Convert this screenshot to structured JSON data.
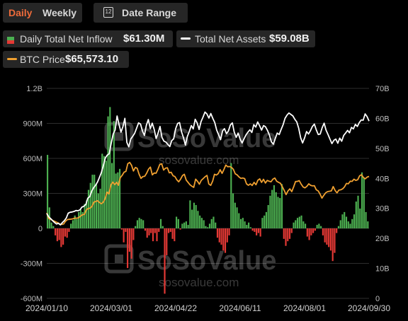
{
  "controls": {
    "tabs": [
      {
        "label": "Daily",
        "active": true
      },
      {
        "label": "Weekly",
        "active": false
      }
    ],
    "date_range_label": "Date Range",
    "calendar_icon_text": "12"
  },
  "colors": {
    "inflow_positive": "#4caf50",
    "inflow_negative": "#e53935",
    "total_net_assets": "#ffffff",
    "btc_price": "#f0a030",
    "active_tab": "#ee6b3a"
  },
  "watermark": {
    "brand": "SoSoValue",
    "url": "sosovalue.com"
  },
  "chart_data": {
    "type": "bar",
    "legend": [
      {
        "name": "Daily Total Net Inflow",
        "value": "$61.30M"
      },
      {
        "name": "Total Net Assets",
        "value": "$59.08B"
      },
      {
        "name": "BTC Price",
        "value": "$65,573.10"
      }
    ],
    "x_tick_labels": [
      "2024/01/10",
      "2024/03/01",
      "2024/04/22",
      "2024/06/11",
      "2024/08/01",
      "2024/09/30"
    ],
    "y_left_tick_labels": [
      "1.2B",
      "900M",
      "600M",
      "300M",
      "0",
      "-300M",
      "-600M"
    ],
    "y_left_range": [
      -600000000,
      1200000000
    ],
    "y_right_tick_labels": [
      "70B",
      "60B",
      "50B",
      "40B",
      "30B",
      "20B",
      "10B",
      "0"
    ],
    "y_right_range": [
      0,
      70000000000
    ],
    "series": [
      {
        "name": "Daily Total Net Inflow",
        "type": "bar",
        "unit": "M",
        "values": [
          630,
          180,
          50,
          20,
          -60,
          -110,
          -100,
          -160,
          -140,
          -70,
          -80,
          -30,
          40,
          70,
          110,
          80,
          140,
          160,
          140,
          210,
          240,
          330,
          390,
          460,
          460,
          380,
          300,
          340,
          640,
          620,
          580,
          960,
          1040,
          560,
          920,
          470,
          480,
          510,
          -10,
          -120,
          -30,
          -340,
          -200,
          -260,
          -100,
          20,
          70,
          90,
          80,
          70,
          -20,
          -80,
          -60,
          -40,
          -110,
          -40,
          -110,
          -30,
          80,
          20,
          -560,
          -230,
          -40,
          -30,
          -90,
          -110,
          100,
          80,
          -10,
          40,
          50,
          60,
          30,
          240,
          160,
          220,
          200,
          150,
          110,
          90,
          70,
          20,
          10,
          40,
          80,
          100,
          50,
          -80,
          -120,
          -140,
          -190,
          -210,
          -120,
          -60,
          560,
          300,
          220,
          180,
          130,
          80,
          90,
          60,
          30,
          50,
          10,
          -20,
          -30,
          -60,
          -40,
          -70,
          90,
          110,
          140,
          200,
          280,
          330,
          370,
          310,
          270,
          260,
          380,
          -90,
          -150,
          -110,
          -90,
          -40,
          50,
          70,
          90,
          100,
          110,
          60,
          40,
          -70,
          -100,
          -60,
          -40,
          -20,
          30,
          40,
          20,
          -60,
          -120,
          -140,
          -160,
          -190,
          -280,
          -210,
          -40,
          20,
          70,
          120,
          140,
          100,
          60,
          40,
          80,
          120,
          230,
          280,
          170,
          480,
          430,
          140,
          60
        ]
      },
      {
        "name": "Total Net Assets",
        "type": "line",
        "unit": "B",
        "values": [
          28.3,
          27.2,
          26.6,
          25.9,
          25.3,
          24.8,
          25.0,
          24.5,
          25.3,
          25.9,
          26.8,
          28.4,
          28.7,
          28.8,
          29.0,
          29.3,
          29.2,
          29.5,
          30.4,
          30.7,
          31.3,
          33.4,
          33.9,
          35.7,
          36.9,
          37.7,
          38.8,
          40.4,
          42.0,
          44.3,
          46.8,
          47.8,
          48.2,
          51.7,
          54.8,
          56.1,
          60.8,
          58.0,
          55.4,
          57.2,
          60.0,
          52.0,
          50.5,
          53.1,
          54.0,
          55.0,
          56.7,
          58.5,
          58.1,
          55.8,
          54.3,
          57.7,
          59.6,
          56.6,
          58.4,
          56.3,
          53.3,
          55.1,
          57.3,
          53.6,
          52.4,
          52.1,
          51.3,
          50.6,
          52.6,
          53.2,
          56.6,
          58.3,
          58.6,
          55.5,
          53.6,
          51.1,
          54.0,
          55.7,
          57.6,
          56.5,
          59.7,
          58.5,
          56.3,
          58.9,
          60.4,
          62.1,
          61.5,
          60.1,
          61.6,
          60.0,
          58.6,
          56.1,
          54.5,
          52.9,
          55.8,
          56.6,
          54.9,
          55.8,
          57.8,
          58.5,
          55.4,
          53.7,
          55.1,
          53.1,
          51.8,
          53.2,
          54.5,
          55.4,
          56.2,
          55.3,
          57.9,
          57.1,
          58.8,
          57.5,
          56.1,
          57.6,
          57.2,
          56.0,
          54.4,
          52.2,
          51.4,
          53.3,
          55.1,
          54.6,
          56.3,
          57.9,
          60.0,
          61.1,
          61.8,
          61.3,
          60.8,
          59.7,
          58.8,
          56.7,
          53.5,
          51.8,
          53.5,
          55.6,
          54.8,
          55.9,
          57.3,
          58.1,
          56.2,
          54.6,
          54.8,
          56.9,
          58.4,
          56.1,
          54.6,
          53.1,
          51.6,
          52.7,
          53.1,
          51.7,
          53.4,
          52.4,
          54.3,
          55.1,
          56.0,
          55.2,
          57.0,
          56.5,
          58.0,
          57.3,
          58.6,
          59.5,
          59.4,
          61.5,
          60.6,
          59.1
        ]
      },
      {
        "name": "BTC Price",
        "type": "line",
        "unit": "USD",
        "values": [
          46000,
          43000,
          42500,
          42000,
          41500,
          41000,
          40600,
          39900,
          39800,
          40000,
          41500,
          42400,
          42500,
          42600,
          42800,
          43200,
          43100,
          43400,
          44300,
          45000,
          45200,
          47600,
          48300,
          48500,
          49500,
          51700,
          52100,
          52500,
          51500,
          50900,
          51700,
          53700,
          57100,
          56200,
          60900,
          62500,
          61200,
          62400,
          60800,
          64900,
          66100,
          67800,
          68300,
          72400,
          73100,
          71600,
          68500,
          70400,
          69900,
          66700,
          64500,
          65500,
          65700,
          67300,
          69500,
          70600,
          66400,
          67400,
          67300,
          69500,
          72000,
          72300,
          69000,
          70000,
          70200,
          67500,
          67800,
          65900,
          65500,
          63800,
          62700,
          64100,
          66000,
          66700,
          63600,
          62300,
          61100,
          60300,
          59700,
          64100,
          62900,
          61400,
          63500,
          64400,
          65400,
          66100,
          61500,
          60800,
          63000,
          66700,
          66300,
          67100,
          69200,
          67200,
          69300,
          71700,
          70800,
          70900,
          70400,
          69400,
          67000,
          66400,
          65300,
          64500,
          64700,
          64400,
          61600,
          60800,
          61600,
          60700,
          62400,
          61100,
          63500,
          64300,
          62400,
          64000,
          62000,
          63400,
          63000,
          62700,
          64100,
          64700,
          63000,
          62400,
          61900,
          60000,
          58000,
          55800,
          57800,
          58900,
          57400,
          60000,
          62800,
          62900,
          63300,
          61400,
          59900,
          59400,
          60200,
          61600,
          60800,
          60500,
          60600,
          58400,
          57800,
          56100,
          53900,
          55400,
          56800,
          57400,
          57600,
          57800,
          60100,
          58000,
          56700,
          58200,
          58400,
          58900,
          60000,
          61800,
          61600,
          63000,
          62900,
          64100,
          63400,
          63800,
          65900,
          66500,
          65000,
          64300,
          65200,
          65573
        ]
      }
    ]
  }
}
